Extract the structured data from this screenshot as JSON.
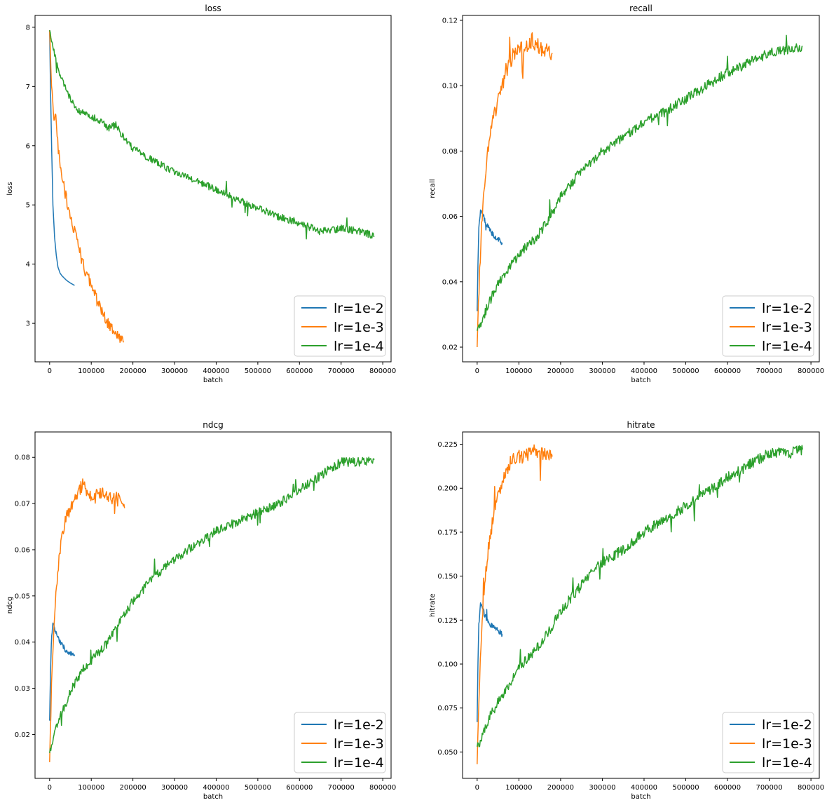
{
  "chart_data": [
    {
      "type": "line",
      "title": "loss",
      "xlabel": "batch",
      "ylabel": "loss",
      "xlim": [
        -35000,
        820000
      ],
      "ylim": [
        2.35,
        8.2
      ],
      "xticks": [
        0,
        100000,
        200000,
        300000,
        400000,
        500000,
        600000,
        700000,
        800000
      ],
      "yticks": [
        3,
        4,
        5,
        6,
        7,
        8
      ],
      "legend": "lower-right",
      "series": [
        {
          "name": "lr=1e-2",
          "color": "#1f77b4",
          "noise": 0,
          "x": [
            0,
            2000,
            5000,
            8000,
            12000,
            16000,
            20000,
            25000,
            30000,
            40000,
            50000,
            60000
          ],
          "y": [
            7.95,
            7.0,
            5.9,
            5.0,
            4.45,
            4.15,
            3.95,
            3.85,
            3.8,
            3.73,
            3.68,
            3.64
          ]
        },
        {
          "name": "lr=1e-3",
          "color": "#ff7f0e",
          "noise": 0.1,
          "x": [
            0,
            5000,
            10000,
            15000,
            20000,
            25000,
            30000,
            40000,
            50000,
            60000,
            70000,
            80000,
            90000,
            100000,
            110000,
            120000,
            130000,
            140000,
            150000,
            160000,
            170000,
            178000
          ],
          "y": [
            7.95,
            6.9,
            6.5,
            6.45,
            6.0,
            5.7,
            5.5,
            5.1,
            4.8,
            4.55,
            4.3,
            4.0,
            3.8,
            3.65,
            3.45,
            3.3,
            3.15,
            3.0,
            2.9,
            2.8,
            2.7,
            2.68
          ]
        },
        {
          "name": "lr=1e-4",
          "color": "#2ca02c",
          "noise": 0.06,
          "x": [
            0,
            10000,
            20000,
            30000,
            40000,
            50000,
            60000,
            80000,
            100000,
            120000,
            140000,
            160000,
            180000,
            200000,
            250000,
            300000,
            350000,
            400000,
            450000,
            500000,
            550000,
            600000,
            650000,
            700000,
            750000,
            780000
          ],
          "y": [
            7.95,
            7.6,
            7.3,
            7.1,
            6.95,
            6.8,
            6.65,
            6.55,
            6.5,
            6.42,
            6.3,
            6.35,
            6.1,
            5.95,
            5.75,
            5.55,
            5.42,
            5.25,
            5.1,
            4.95,
            4.8,
            4.7,
            4.55,
            4.6,
            4.55,
            4.47
          ]
        }
      ]
    },
    {
      "type": "line",
      "title": "recall",
      "xlabel": "batch",
      "ylabel": "recall",
      "xlim": [
        -35000,
        820000
      ],
      "ylim": [
        0.0155,
        0.1215
      ],
      "xticks": [
        0,
        100000,
        200000,
        300000,
        400000,
        500000,
        600000,
        700000,
        800000
      ],
      "yticks": [
        0.02,
        0.04,
        0.06,
        0.08,
        0.1,
        0.12
      ],
      "legend": "lower-right",
      "series": [
        {
          "name": "lr=1e-2",
          "color": "#1f77b4",
          "noise": 0.0008,
          "x": [
            0,
            2000,
            4000,
            6000,
            8000,
            10000,
            15000,
            20000,
            25000,
            30000,
            40000,
            50000,
            60000
          ],
          "y": [
            0.031,
            0.045,
            0.057,
            0.059,
            0.062,
            0.061,
            0.06,
            0.058,
            0.057,
            0.056,
            0.054,
            0.053,
            0.052
          ]
        },
        {
          "name": "lr=1e-3",
          "color": "#ff7f0e",
          "noise": 0.0025,
          "x": [
            0,
            5000,
            10000,
            15000,
            20000,
            25000,
            30000,
            40000,
            50000,
            60000,
            70000,
            80000,
            90000,
            100000,
            110000,
            120000,
            130000,
            140000,
            150000,
            160000,
            170000,
            180000
          ],
          "y": [
            0.02,
            0.04,
            0.055,
            0.065,
            0.073,
            0.08,
            0.085,
            0.09,
            0.095,
            0.1,
            0.105,
            0.108,
            0.11,
            0.111,
            0.111,
            0.112,
            0.114,
            0.113,
            0.112,
            0.111,
            0.111,
            0.11
          ]
        },
        {
          "name": "lr=1e-4",
          "color": "#2ca02c",
          "noise": 0.0015,
          "x": [
            0,
            10000,
            20000,
            30000,
            40000,
            60000,
            80000,
            100000,
            120000,
            140000,
            160000,
            180000,
            200000,
            250000,
            300000,
            350000,
            400000,
            450000,
            500000,
            550000,
            600000,
            650000,
            700000,
            750000,
            780000
          ],
          "y": [
            0.025,
            0.027,
            0.031,
            0.034,
            0.037,
            0.041,
            0.045,
            0.048,
            0.051,
            0.053,
            0.057,
            0.061,
            0.066,
            0.074,
            0.08,
            0.084,
            0.089,
            0.092,
            0.096,
            0.1,
            0.104,
            0.107,
            0.11,
            0.111,
            0.112
          ]
        }
      ]
    },
    {
      "type": "line",
      "title": "ndcg",
      "xlabel": "batch",
      "ylabel": "ndcg",
      "xlim": [
        -35000,
        820000
      ],
      "ylim": [
        0.0105,
        0.0855
      ],
      "xticks": [
        0,
        100000,
        200000,
        300000,
        400000,
        500000,
        600000,
        700000,
        800000
      ],
      "yticks": [
        0.02,
        0.03,
        0.04,
        0.05,
        0.06,
        0.07,
        0.08
      ],
      "legend": "lower-right",
      "series": [
        {
          "name": "lr=1e-2",
          "color": "#1f77b4",
          "noise": 0.0005,
          "x": [
            0,
            2000,
            4000,
            6000,
            8000,
            10000,
            15000,
            20000,
            25000,
            30000,
            40000,
            50000,
            60000
          ],
          "y": [
            0.023,
            0.033,
            0.04,
            0.042,
            0.044,
            0.0435,
            0.042,
            0.041,
            0.04,
            0.0395,
            0.038,
            0.0375,
            0.037
          ]
        },
        {
          "name": "lr=1e-3",
          "color": "#ff7f0e",
          "noise": 0.0015,
          "x": [
            0,
            5000,
            10000,
            15000,
            20000,
            25000,
            30000,
            40000,
            50000,
            60000,
            70000,
            80000,
            90000,
            100000,
            110000,
            120000,
            130000,
            140000,
            150000,
            160000,
            170000,
            180000
          ],
          "y": [
            0.014,
            0.032,
            0.042,
            0.05,
            0.055,
            0.06,
            0.064,
            0.067,
            0.069,
            0.071,
            0.073,
            0.074,
            0.0725,
            0.072,
            0.0715,
            0.072,
            0.0725,
            0.0715,
            0.071,
            0.071,
            0.0705,
            0.069
          ]
        },
        {
          "name": "lr=1e-4",
          "color": "#2ca02c",
          "noise": 0.001,
          "x": [
            0,
            10000,
            20000,
            30000,
            40000,
            60000,
            80000,
            100000,
            120000,
            140000,
            160000,
            180000,
            200000,
            250000,
            300000,
            350000,
            400000,
            450000,
            500000,
            550000,
            600000,
            650000,
            700000,
            750000,
            780000
          ],
          "y": [
            0.016,
            0.02,
            0.023,
            0.025,
            0.027,
            0.031,
            0.034,
            0.036,
            0.038,
            0.04,
            0.043,
            0.046,
            0.049,
            0.054,
            0.058,
            0.061,
            0.064,
            0.066,
            0.068,
            0.07,
            0.073,
            0.076,
            0.079,
            0.079,
            0.0795
          ]
        }
      ]
    },
    {
      "type": "line",
      "title": "hitrate",
      "xlabel": "batch",
      "ylabel": "hitrate",
      "xlim": [
        -35000,
        820000
      ],
      "ylim": [
        0.035,
        0.232
      ],
      "xticks": [
        0,
        100000,
        200000,
        300000,
        400000,
        500000,
        600000,
        700000,
        800000
      ],
      "yticks": [
        0.05,
        0.075,
        0.1,
        0.125,
        0.15,
        0.175,
        0.2,
        0.225
      ],
      "legend": "lower-right",
      "series": [
        {
          "name": "lr=1e-2",
          "color": "#1f77b4",
          "noise": 0.0015,
          "x": [
            0,
            2000,
            4000,
            6000,
            8000,
            10000,
            15000,
            20000,
            25000,
            30000,
            40000,
            50000,
            60000
          ],
          "y": [
            0.067,
            0.1,
            0.122,
            0.128,
            0.134,
            0.133,
            0.13,
            0.127,
            0.125,
            0.123,
            0.121,
            0.119,
            0.117
          ]
        },
        {
          "name": "lr=1e-3",
          "color": "#ff7f0e",
          "noise": 0.004,
          "x": [
            0,
            5000,
            10000,
            15000,
            20000,
            25000,
            30000,
            40000,
            50000,
            60000,
            70000,
            80000,
            90000,
            100000,
            110000,
            120000,
            130000,
            140000,
            150000,
            160000,
            170000,
            180000
          ],
          "y": [
            0.043,
            0.085,
            0.115,
            0.135,
            0.15,
            0.162,
            0.172,
            0.185,
            0.195,
            0.203,
            0.21,
            0.215,
            0.217,
            0.218,
            0.218,
            0.219,
            0.222,
            0.22,
            0.219,
            0.219,
            0.218,
            0.218
          ]
        },
        {
          "name": "lr=1e-4",
          "color": "#2ca02c",
          "noise": 0.003,
          "x": [
            0,
            10000,
            20000,
            30000,
            40000,
            60000,
            80000,
            100000,
            120000,
            140000,
            160000,
            180000,
            200000,
            250000,
            300000,
            350000,
            400000,
            450000,
            500000,
            550000,
            600000,
            650000,
            700000,
            750000,
            780000
          ],
          "y": [
            0.053,
            0.058,
            0.065,
            0.07,
            0.074,
            0.082,
            0.09,
            0.097,
            0.103,
            0.108,
            0.114,
            0.122,
            0.13,
            0.145,
            0.158,
            0.165,
            0.175,
            0.182,
            0.19,
            0.198,
            0.206,
            0.213,
            0.22,
            0.22,
            0.222
          ]
        }
      ]
    }
  ]
}
